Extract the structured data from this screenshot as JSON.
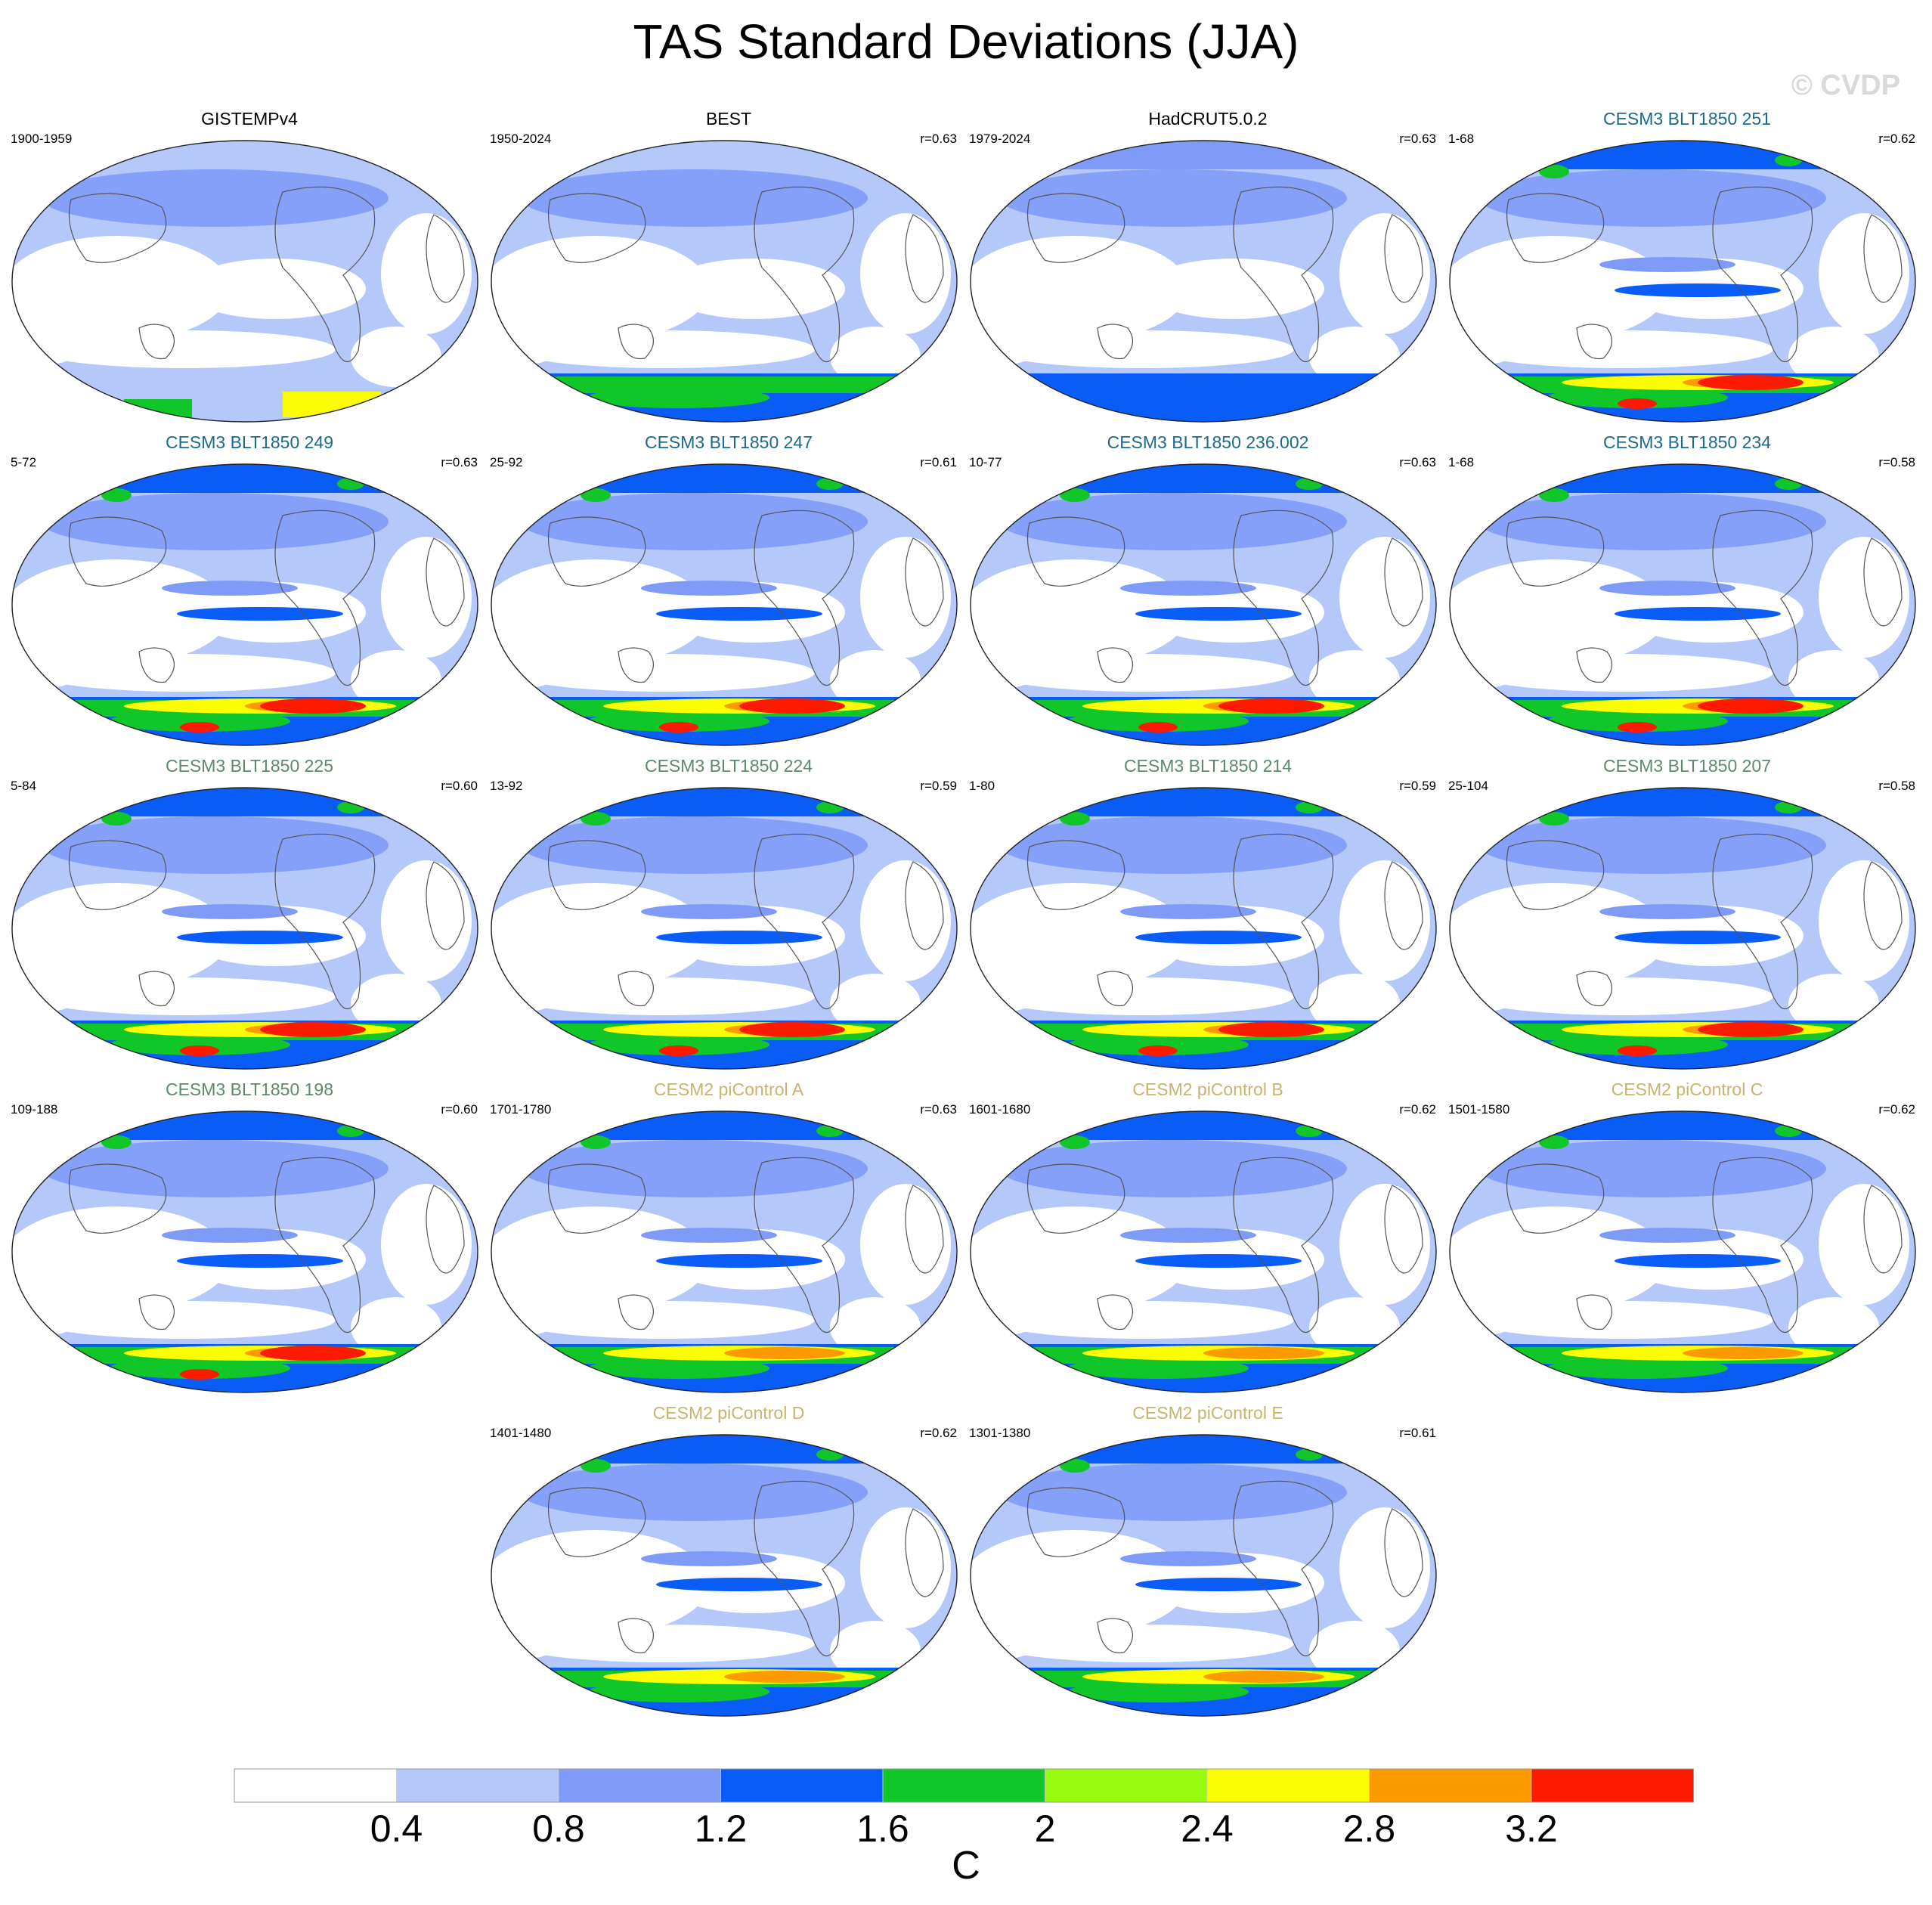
{
  "title": "TAS Standard Deviations (JJA)",
  "watermark": "© CVDP",
  "chart_data": {
    "type": "heatmap",
    "title": "TAS Standard Deviations (JJA)",
    "projection": "robinson-like ellipse, Pacific-centered",
    "colorbar": {
      "levels": [
        0.4,
        0.8,
        1.2,
        1.6,
        2,
        2.4,
        2.8,
        3.2
      ],
      "tick_labels": [
        "0.4",
        "0.8",
        "1.2",
        "1.6",
        "2",
        "2.4",
        "2.8",
        "3.2"
      ],
      "colors": [
        "#ffffff",
        "#b4c8fa",
        "#7f9bf7",
        "#0a5cf7",
        "#10c628",
        "#98fa0c",
        "#fcfc05",
        "#fc9a00",
        "#fc1a00"
      ],
      "unit": "C"
    },
    "panels": [
      {
        "title": "GISTEMPv4",
        "years": "1900-1959",
        "r": "",
        "title_color": "#000000",
        "antarctic_band": false,
        "antarctic_level": 0,
        "ocean_band": false,
        "arctic": 1
      },
      {
        "title": "BEST",
        "years": "1950-2024",
        "r": "r=0.63",
        "title_color": "#000000",
        "antarctic_band": true,
        "antarctic_level": 5,
        "ocean_band": false,
        "arctic": 1
      },
      {
        "title": "HadCRUT5.0.2",
        "years": "1979-2024",
        "r": "r=0.63",
        "title_color": "#000000",
        "antarctic_band": true,
        "antarctic_level": 3,
        "ocean_band": false,
        "arctic": 2
      },
      {
        "title": "CESM3 BLT1850 251",
        "years": "1-68",
        "r": "r=0.62",
        "title_color": "#1a6a8c",
        "antarctic_band": true,
        "antarctic_level": 8,
        "ocean_band": true,
        "arctic": 3
      },
      {
        "title": "CESM3 BLT1850 249",
        "years": "5-72",
        "r": "r=0.63",
        "title_color": "#1a6a8c",
        "antarctic_band": true,
        "antarctic_level": 8,
        "ocean_band": true,
        "arctic": 3
      },
      {
        "title": "CESM3 BLT1850 247",
        "years": "25-92",
        "r": "r=0.61",
        "title_color": "#1a6a8c",
        "antarctic_band": true,
        "antarctic_level": 8,
        "ocean_band": true,
        "arctic": 3
      },
      {
        "title": "CESM3 BLT1850 236.002",
        "years": "10-77",
        "r": "r=0.63",
        "title_color": "#1a6a8c",
        "antarctic_band": true,
        "antarctic_level": 8,
        "ocean_band": true,
        "arctic": 3
      },
      {
        "title": "CESM3 BLT1850 234",
        "years": "1-68",
        "r": "r=0.58",
        "title_color": "#1a6a8c",
        "antarctic_band": true,
        "antarctic_level": 8,
        "ocean_band": true,
        "arctic": 3
      },
      {
        "title": "CESM3 BLT1850 225",
        "years": "5-84",
        "r": "r=0.60",
        "title_color": "#5a8a6a",
        "antarctic_band": true,
        "antarctic_level": 8,
        "ocean_band": true,
        "arctic": 3
      },
      {
        "title": "CESM3 BLT1850 224",
        "years": "13-92",
        "r": "r=0.59",
        "title_color": "#5a8a6a",
        "antarctic_band": true,
        "antarctic_level": 8,
        "ocean_band": true,
        "arctic": 3
      },
      {
        "title": "CESM3 BLT1850 214",
        "years": "1-80",
        "r": "r=0.59",
        "title_color": "#5a8a6a",
        "antarctic_band": true,
        "antarctic_level": 8,
        "ocean_band": true,
        "arctic": 3
      },
      {
        "title": "CESM3 BLT1850 207",
        "years": "25-104",
        "r": "r=0.58",
        "title_color": "#5a8a6a",
        "antarctic_band": true,
        "antarctic_level": 8,
        "ocean_band": true,
        "arctic": 3
      },
      {
        "title": "CESM3 BLT1850 198",
        "years": "109-188",
        "r": "r=0.60",
        "title_color": "#5a8a6a",
        "antarctic_band": true,
        "antarctic_level": 8,
        "ocean_band": true,
        "arctic": 3
      },
      {
        "title": "CESM2 piControl A",
        "years": "1701-1780",
        "r": "r=0.63",
        "title_color": "#c8b46a",
        "antarctic_band": true,
        "antarctic_level": 6,
        "ocean_band": true,
        "arctic": 3
      },
      {
        "title": "CESM2 piControl B",
        "years": "1601-1680",
        "r": "r=0.62",
        "title_color": "#c8b46a",
        "antarctic_band": true,
        "antarctic_level": 6,
        "ocean_band": true,
        "arctic": 3
      },
      {
        "title": "CESM2 piControl C",
        "years": "1501-1580",
        "r": "r=0.62",
        "title_color": "#c8b46a",
        "antarctic_band": true,
        "antarctic_level": 6,
        "ocean_band": true,
        "arctic": 3
      },
      {
        "title": "CESM2 piControl D",
        "years": "1401-1480",
        "r": "r=0.62",
        "title_color": "#c8b46a",
        "antarctic_band": true,
        "antarctic_level": 6,
        "ocean_band": true,
        "arctic": 3
      },
      {
        "title": "CESM2 piControl E",
        "years": "1301-1380",
        "r": "r=0.61",
        "title_color": "#c8b46a",
        "antarctic_band": true,
        "antarctic_level": 6,
        "ocean_band": true,
        "arctic": 3
      }
    ]
  }
}
